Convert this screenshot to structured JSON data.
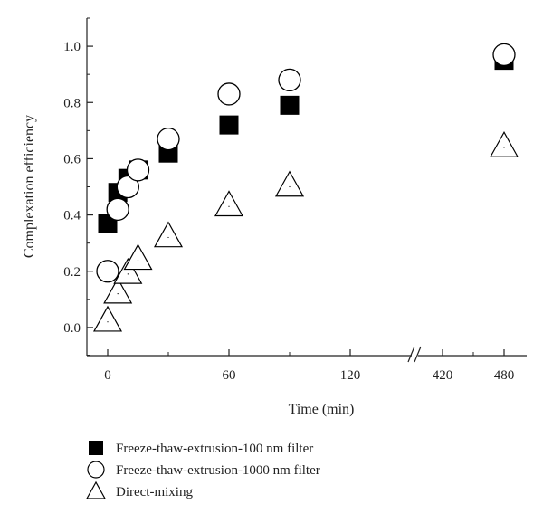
{
  "chart_data": {
    "type": "scatter",
    "xlabel": "Time (min)",
    "ylabel": "Complexation efficiency",
    "ylim": [
      -0.1,
      1.1
    ],
    "x_segments": [
      {
        "range": [
          -10,
          155
        ],
        "ticks": [
          0,
          60,
          120
        ]
      },
      {
        "range": [
          405,
          490
        ],
        "ticks": [
          420,
          480
        ]
      }
    ],
    "x_break": "between 155 and 405",
    "yticks": [
      "0.0",
      "0.2",
      "0.4",
      "0.6",
      "0.8",
      "1.0"
    ],
    "xtick_labels": [
      "0",
      "60",
      "120",
      "420",
      "480"
    ],
    "legend_position": "bottom-left",
    "series": [
      {
        "name": "Freeze-thaw-extrusion-100 nm filter",
        "marker": "filled-square",
        "color": "#000000",
        "points": [
          [
            0,
            0.37
          ],
          [
            5,
            0.48
          ],
          [
            10,
            0.53
          ],
          [
            15,
            0.56
          ],
          [
            30,
            0.62
          ],
          [
            60,
            0.72
          ],
          [
            90,
            0.79
          ],
          [
            480,
            0.95
          ]
        ]
      },
      {
        "name": "Freeze-thaw-extrusion-1000 nm filter",
        "marker": "open-circle",
        "color": "#000000",
        "points": [
          [
            0,
            0.2
          ],
          [
            5,
            0.42
          ],
          [
            10,
            0.5
          ],
          [
            15,
            0.56
          ],
          [
            30,
            0.67
          ],
          [
            60,
            0.83
          ],
          [
            90,
            0.88
          ],
          [
            480,
            0.97
          ]
        ]
      },
      {
        "name": "Direct-mixing",
        "marker": "open-triangle",
        "color": "#000000",
        "points": [
          [
            0,
            0.02
          ],
          [
            5,
            0.12
          ],
          [
            10,
            0.19
          ],
          [
            15,
            0.24
          ],
          [
            30,
            0.32
          ],
          [
            60,
            0.43
          ],
          [
            90,
            0.5
          ],
          [
            480,
            0.64
          ]
        ]
      }
    ]
  }
}
